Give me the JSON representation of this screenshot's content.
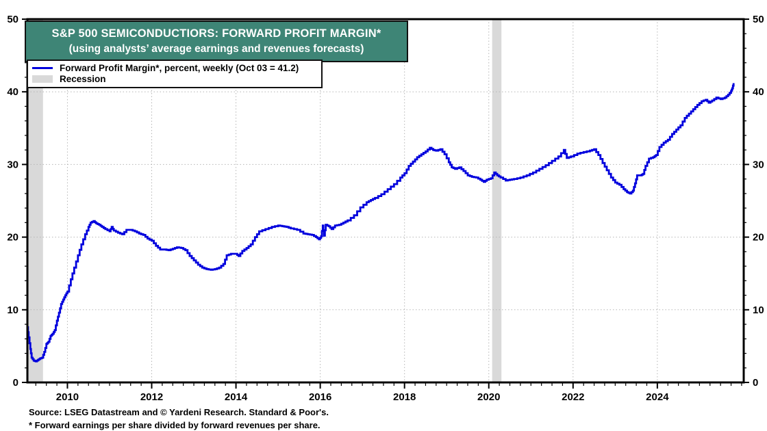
{
  "header": {
    "title": "S&P 500 SEMICONDUCTIORS: FORWARD PROFIT MARGIN*",
    "subtitle": "(using analysts’ average earnings and revenues forecasts)"
  },
  "legend": {
    "items": [
      {
        "label": "Forward Profit Margin*, percent, weekly (Oct 03 = 41.2)",
        "swatch": "line",
        "color": "#0000DD"
      },
      {
        "label": "Recession",
        "swatch": "box",
        "color": "#D9D9D9"
      }
    ]
  },
  "footer": {
    "source": "Source: LSEG Datastream and © Yardeni Research. Standard & Poor's.",
    "footnote": "* Forward earnings per share divided by forward revenues per share."
  },
  "colors": {
    "accent_teal": "#3E8576",
    "line_blue": "#0000DD",
    "recession_gray": "#D9D9D9",
    "grid_gray": "#B5B5B5",
    "frame_black": "#000000"
  },
  "chart_data": {
    "type": "line",
    "title": "S&P 500 Semiconductiors: Forward Profit Margin",
    "xlabel": "",
    "ylabel": "Forward Profit Margin, percent, weekly",
    "x_range": [
      2009.05,
      2026.05
    ],
    "y_range": [
      0,
      50
    ],
    "x_ticks": [
      2010,
      2012,
      2014,
      2016,
      2018,
      2020,
      2022,
      2024
    ],
    "y_ticks": [
      0,
      10,
      20,
      30,
      40,
      50
    ],
    "x_minor_step": 0.25,
    "y_minor_step": 2,
    "grid": "dotted",
    "legend_position": "top-left",
    "last_point_label": "Oct 03 = 41.2",
    "recession_bands": [
      [
        2009.05,
        2009.42
      ],
      [
        2020.08,
        2020.3
      ]
    ],
    "series": [
      {
        "name": "Forward Profit Margin*, percent, weekly",
        "points": [
          [
            2009.05,
            7.6
          ],
          [
            2009.08,
            6.2
          ],
          [
            2009.12,
            4.6
          ],
          [
            2009.15,
            3.4
          ],
          [
            2009.2,
            3.0
          ],
          [
            2009.25,
            2.9
          ],
          [
            2009.3,
            3.1
          ],
          [
            2009.35,
            3.3
          ],
          [
            2009.4,
            3.4
          ],
          [
            2009.45,
            4.2
          ],
          [
            2009.5,
            5.3
          ],
          [
            2009.55,
            5.6
          ],
          [
            2009.6,
            6.4
          ],
          [
            2009.65,
            6.7
          ],
          [
            2009.7,
            7.2
          ],
          [
            2009.75,
            8.5
          ],
          [
            2009.8,
            9.6
          ],
          [
            2009.85,
            10.8
          ],
          [
            2009.9,
            11.4
          ],
          [
            2009.95,
            12.0
          ],
          [
            2010.0,
            12.5
          ],
          [
            2010.08,
            14.2
          ],
          [
            2010.16,
            15.8
          ],
          [
            2010.25,
            17.5
          ],
          [
            2010.33,
            19.0
          ],
          [
            2010.42,
            20.4
          ],
          [
            2010.5,
            21.4
          ],
          [
            2010.55,
            22.0
          ],
          [
            2010.62,
            22.2
          ],
          [
            2010.68,
            21.9
          ],
          [
            2010.75,
            21.7
          ],
          [
            2010.82,
            21.4
          ],
          [
            2010.9,
            21.1
          ],
          [
            2011.0,
            20.8
          ],
          [
            2011.05,
            21.4
          ],
          [
            2011.1,
            20.9
          ],
          [
            2011.2,
            20.6
          ],
          [
            2011.3,
            20.4
          ],
          [
            2011.4,
            21.0
          ],
          [
            2011.5,
            21.0
          ],
          [
            2011.6,
            20.8
          ],
          [
            2011.7,
            20.5
          ],
          [
            2011.8,
            20.3
          ],
          [
            2011.9,
            19.8
          ],
          [
            2012.0,
            19.5
          ],
          [
            2012.1,
            18.8
          ],
          [
            2012.2,
            18.3
          ],
          [
            2012.3,
            18.3
          ],
          [
            2012.4,
            18.2
          ],
          [
            2012.5,
            18.4
          ],
          [
            2012.6,
            18.6
          ],
          [
            2012.7,
            18.5
          ],
          [
            2012.8,
            18.2
          ],
          [
            2012.9,
            17.4
          ],
          [
            2013.0,
            16.8
          ],
          [
            2013.1,
            16.2
          ],
          [
            2013.2,
            15.8
          ],
          [
            2013.3,
            15.6
          ],
          [
            2013.4,
            15.5
          ],
          [
            2013.5,
            15.6
          ],
          [
            2013.6,
            15.8
          ],
          [
            2013.7,
            16.3
          ],
          [
            2013.78,
            17.5
          ],
          [
            2013.88,
            17.7
          ],
          [
            2014.0,
            17.7
          ],
          [
            2014.06,
            17.4
          ],
          [
            2014.15,
            18.1
          ],
          [
            2014.25,
            18.5
          ],
          [
            2014.35,
            19.0
          ],
          [
            2014.45,
            20.0
          ],
          [
            2014.55,
            20.8
          ],
          [
            2014.7,
            21.1
          ],
          [
            2014.85,
            21.4
          ],
          [
            2015.0,
            21.6
          ],
          [
            2015.1,
            21.5
          ],
          [
            2015.2,
            21.4
          ],
          [
            2015.3,
            21.2
          ],
          [
            2015.45,
            21.0
          ],
          [
            2015.6,
            20.5
          ],
          [
            2015.7,
            20.4
          ],
          [
            2015.8,
            20.3
          ],
          [
            2015.9,
            20.0
          ],
          [
            2015.97,
            19.7
          ],
          [
            2016.02,
            20.1
          ],
          [
            2016.06,
            21.6
          ],
          [
            2016.09,
            20.2
          ],
          [
            2016.13,
            21.7
          ],
          [
            2016.2,
            21.5
          ],
          [
            2016.27,
            21.1
          ],
          [
            2016.35,
            21.6
          ],
          [
            2016.45,
            21.7
          ],
          [
            2016.55,
            22.0
          ],
          [
            2016.65,
            22.3
          ],
          [
            2016.8,
            23.0
          ],
          [
            2016.95,
            24.1
          ],
          [
            2017.1,
            24.8
          ],
          [
            2017.2,
            25.1
          ],
          [
            2017.3,
            25.4
          ],
          [
            2017.45,
            25.9
          ],
          [
            2017.6,
            26.6
          ],
          [
            2017.75,
            27.3
          ],
          [
            2017.9,
            28.2
          ],
          [
            2018.0,
            28.8
          ],
          [
            2018.1,
            29.8
          ],
          [
            2018.2,
            30.4
          ],
          [
            2018.3,
            31.0
          ],
          [
            2018.4,
            31.4
          ],
          [
            2018.5,
            31.8
          ],
          [
            2018.6,
            32.3
          ],
          [
            2018.68,
            32.0
          ],
          [
            2018.75,
            31.9
          ],
          [
            2018.85,
            32.1
          ],
          [
            2018.95,
            31.4
          ],
          [
            2019.05,
            30.3
          ],
          [
            2019.12,
            29.6
          ],
          [
            2019.2,
            29.4
          ],
          [
            2019.3,
            29.6
          ],
          [
            2019.4,
            29.1
          ],
          [
            2019.5,
            28.5
          ],
          [
            2019.6,
            28.3
          ],
          [
            2019.7,
            28.2
          ],
          [
            2019.8,
            27.9
          ],
          [
            2019.88,
            27.6
          ],
          [
            2019.95,
            27.9
          ],
          [
            2020.05,
            28.1
          ],
          [
            2020.13,
            28.9
          ],
          [
            2020.2,
            28.5
          ],
          [
            2020.28,
            28.2
          ],
          [
            2020.4,
            27.8
          ],
          [
            2020.5,
            27.9
          ],
          [
            2020.6,
            28.0
          ],
          [
            2020.75,
            28.2
          ],
          [
            2020.9,
            28.5
          ],
          [
            2021.05,
            28.9
          ],
          [
            2021.2,
            29.4
          ],
          [
            2021.35,
            29.9
          ],
          [
            2021.5,
            30.5
          ],
          [
            2021.65,
            31.1
          ],
          [
            2021.78,
            32.0
          ],
          [
            2021.85,
            30.9
          ],
          [
            2021.95,
            31.1
          ],
          [
            2022.1,
            31.5
          ],
          [
            2022.25,
            31.7
          ],
          [
            2022.4,
            31.9
          ],
          [
            2022.5,
            32.1
          ],
          [
            2022.6,
            31.3
          ],
          [
            2022.7,
            30.2
          ],
          [
            2022.8,
            29.2
          ],
          [
            2022.9,
            28.2
          ],
          [
            2023.0,
            27.5
          ],
          [
            2023.1,
            27.2
          ],
          [
            2023.2,
            26.6
          ],
          [
            2023.28,
            26.2
          ],
          [
            2023.35,
            26.0
          ],
          [
            2023.42,
            26.4
          ],
          [
            2023.47,
            27.4
          ],
          [
            2023.52,
            28.5
          ],
          [
            2023.6,
            28.5
          ],
          [
            2023.66,
            28.7
          ],
          [
            2023.72,
            29.8
          ],
          [
            2023.8,
            30.8
          ],
          [
            2023.9,
            31.0
          ],
          [
            2023.97,
            31.3
          ],
          [
            2024.05,
            32.4
          ],
          [
            2024.15,
            33.0
          ],
          [
            2024.25,
            33.4
          ],
          [
            2024.35,
            34.2
          ],
          [
            2024.45,
            34.8
          ],
          [
            2024.55,
            35.4
          ],
          [
            2024.65,
            36.4
          ],
          [
            2024.75,
            37.0
          ],
          [
            2024.85,
            37.6
          ],
          [
            2024.95,
            38.2
          ],
          [
            2025.05,
            38.7
          ],
          [
            2025.15,
            38.9
          ],
          [
            2025.22,
            38.5
          ],
          [
            2025.3,
            38.8
          ],
          [
            2025.4,
            39.2
          ],
          [
            2025.5,
            39.0
          ],
          [
            2025.6,
            39.2
          ],
          [
            2025.68,
            39.6
          ],
          [
            2025.75,
            40.1
          ],
          [
            2025.78,
            40.5
          ],
          [
            2025.81,
            41.2
          ]
        ]
      }
    ]
  }
}
